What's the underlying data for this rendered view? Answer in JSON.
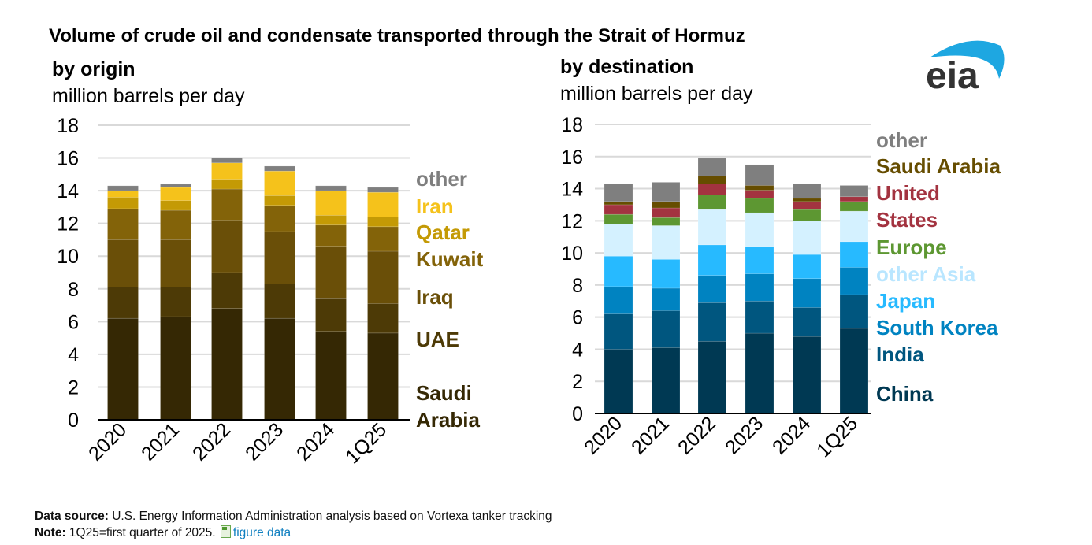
{
  "title": "Volume of crude oil and condensate transported through the Strait of Hormuz",
  "logo": {
    "text": "eia",
    "arc_color": "#1ea7e1",
    "text_color": "#333333"
  },
  "footer": {
    "source_label": "Data source:",
    "source_text": "U.S. Energy Information Administration analysis based on Vortexa tanker tracking",
    "note_label": "Note:",
    "note_text": "1Q25=first quarter of 2025.",
    "link_text": "figure data",
    "link_icon": "spreadsheet-icon"
  },
  "chart_data": [
    {
      "type": "bar",
      "stacked": true,
      "title": "by origin",
      "ylabel": "million barrels per day",
      "ylim": [
        0,
        18
      ],
      "yticks": [
        0,
        2,
        4,
        6,
        8,
        10,
        12,
        14,
        16,
        18
      ],
      "grid": true,
      "legend_placement": "right",
      "categories": [
        "2020",
        "2021",
        "2022",
        "2023",
        "2024",
        "1Q25"
      ],
      "series": [
        {
          "name": "Saudi Arabia",
          "color": "#352804",
          "values": [
            6.2,
            6.3,
            6.8,
            6.2,
            5.4,
            5.3
          ]
        },
        {
          "name": "UAE",
          "color": "#4d3a06",
          "values": [
            1.9,
            1.8,
            2.2,
            2.1,
            2.0,
            1.8
          ]
        },
        {
          "name": "Iraq",
          "color": "#6a4f08",
          "values": [
            2.9,
            2.9,
            3.2,
            3.2,
            3.2,
            3.2
          ]
        },
        {
          "name": "Kuwait",
          "color": "#836309",
          "values": [
            1.9,
            1.8,
            1.9,
            1.6,
            1.3,
            1.5
          ]
        },
        {
          "name": "Qatar",
          "color": "#c49a05",
          "values": [
            0.7,
            0.6,
            0.6,
            0.6,
            0.6,
            0.6
          ]
        },
        {
          "name": "Iran",
          "color": "#f5c21b",
          "values": [
            0.4,
            0.8,
            1.0,
            1.5,
            1.5,
            1.5
          ]
        },
        {
          "name": "other",
          "color": "#7f7f7f",
          "values": [
            0.3,
            0.2,
            0.3,
            0.3,
            0.3,
            0.3
          ]
        }
      ]
    },
    {
      "type": "bar",
      "stacked": true,
      "title": "by destination",
      "ylabel": "million barrels per day",
      "ylim": [
        0,
        18
      ],
      "yticks": [
        0,
        2,
        4,
        6,
        8,
        10,
        12,
        14,
        16,
        18
      ],
      "grid": true,
      "legend_placement": "right",
      "categories": [
        "2020",
        "2021",
        "2022",
        "2023",
        "2024",
        "1Q25"
      ],
      "series": [
        {
          "name": "China",
          "color": "#003953",
          "values": [
            4.0,
            4.1,
            4.5,
            5.0,
            4.8,
            5.3
          ]
        },
        {
          "name": "India",
          "color": "#00567f",
          "values": [
            2.2,
            2.3,
            2.4,
            2.0,
            1.8,
            2.1
          ]
        },
        {
          "name": "South Korea",
          "color": "#0083c1",
          "values": [
            1.7,
            1.4,
            1.7,
            1.7,
            1.8,
            1.7
          ]
        },
        {
          "name": "Japan",
          "color": "#27baff",
          "values": [
            1.9,
            1.8,
            1.9,
            1.7,
            1.5,
            1.6
          ]
        },
        {
          "name": "other Asia",
          "color": "#d4f1ff",
          "values": [
            2.0,
            2.1,
            2.2,
            2.1,
            2.1,
            1.9
          ]
        },
        {
          "name": "Europe",
          "color": "#5d9732",
          "values": [
            0.6,
            0.5,
            0.9,
            0.9,
            0.7,
            0.6
          ]
        },
        {
          "name": "United States",
          "color": "#a33340",
          "values": [
            0.6,
            0.6,
            0.7,
            0.5,
            0.5,
            0.3
          ]
        },
        {
          "name": "Saudi Arabia",
          "color": "#664d00",
          "values": [
            0.2,
            0.4,
            0.5,
            0.3,
            0.2,
            0.0
          ]
        },
        {
          "name": "other",
          "color": "#7f7f7f",
          "values": [
            1.1,
            1.2,
            1.1,
            1.3,
            0.9,
            0.7
          ]
        }
      ]
    }
  ]
}
